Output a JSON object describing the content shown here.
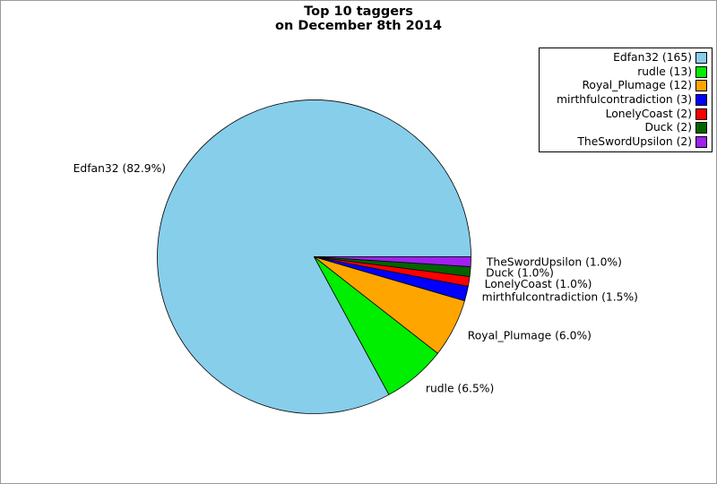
{
  "page": {
    "background_color": "#ffffff",
    "border_color": "#9a9a9a"
  },
  "title": {
    "line1": "Top 10 taggers",
    "line2": "on December 8th 2014"
  },
  "chart_data": {
    "type": "pie",
    "title": "Top 10 taggers on December 8th 2014",
    "start_angle_deg": 0,
    "direction": "counterclockwise",
    "total_count": 199,
    "legend_position": "upper right",
    "edge_color": "#000000",
    "label_distance": 1.1,
    "series": [
      {
        "name": "Edfan32",
        "count": 165,
        "percent": 82.9,
        "color": "#87CEEB",
        "slice_label": "Edfan32 (82.9%)",
        "legend_label": "Edfan32 (165)"
      },
      {
        "name": "rudle",
        "count": 13,
        "percent": 6.5,
        "color": "#00EE00",
        "slice_label": "rudle (6.5%)",
        "legend_label": "rudle (13)"
      },
      {
        "name": "Royal_Plumage",
        "count": 12,
        "percent": 6.0,
        "color": "#FFA500",
        "slice_label": "Royal_Plumage (6.0%)",
        "legend_label": "Royal_Plumage (12)"
      },
      {
        "name": "mirthfulcontradiction",
        "count": 3,
        "percent": 1.5,
        "color": "#0000FF",
        "slice_label": "mirthfulcontradiction (1.5%)",
        "legend_label": "mirthfulcontradiction (3)"
      },
      {
        "name": "LonelyCoast",
        "count": 2,
        "percent": 1.0,
        "color": "#FF0000",
        "slice_label": "LonelyCoast (1.0%)",
        "legend_label": "LonelyCoast (2)"
      },
      {
        "name": "Duck",
        "count": 2,
        "percent": 1.0,
        "color": "#006400",
        "slice_label": "Duck (1.0%)",
        "legend_label": "Duck (2)"
      },
      {
        "name": "TheSwordUpsilon",
        "count": 2,
        "percent": 1.0,
        "color": "#A020F0",
        "slice_label": "TheSwordUpsilon (1.0%)",
        "legend_label": "TheSwordUpsilon (2)"
      }
    ]
  }
}
